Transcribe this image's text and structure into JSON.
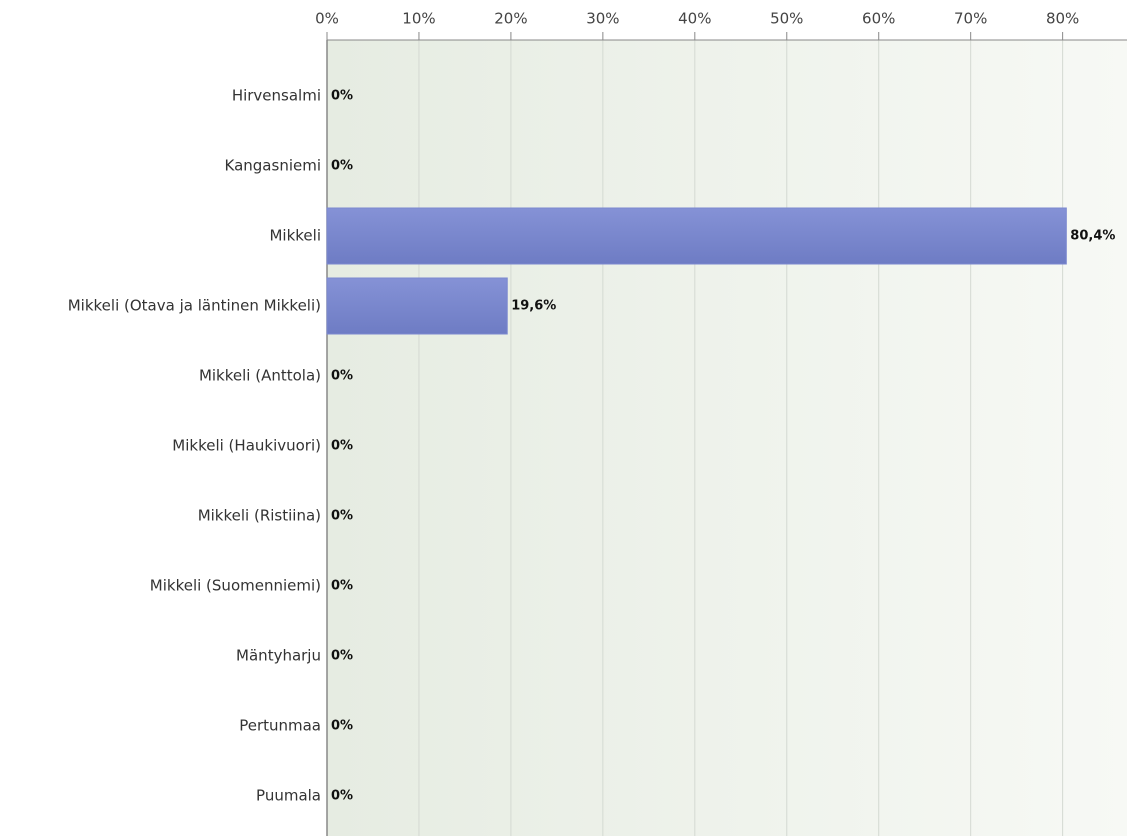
{
  "chart_data": {
    "type": "barh",
    "categories": [
      "Hirvensalmi",
      "Kangasniemi",
      "Mikkeli",
      "Mikkeli (Otava ja läntinen Mikkeli)",
      "Mikkeli (Anttola)",
      "Mikkeli (Haukivuori)",
      "Mikkeli (Ristiina)",
      "Mikkeli (Suomenniemi)",
      "Mäntyharju",
      "Pertunmaa",
      "Puumala"
    ],
    "values": [
      0,
      0,
      80.4,
      19.6,
      0,
      0,
      0,
      0,
      0,
      0,
      0
    ],
    "value_labels": [
      "0%",
      "0%",
      "80,4%",
      "19,6%",
      "0%",
      "0%",
      "0%",
      "0%",
      "0%",
      "0%",
      "0%"
    ],
    "color": "#7b88cf",
    "xlim": [
      0,
      87
    ],
    "xticks": [
      {
        "value": 0,
        "label": "0%"
      },
      {
        "value": 10,
        "label": "10%"
      },
      {
        "value": 20,
        "label": "20%"
      },
      {
        "value": 30,
        "label": "30%"
      },
      {
        "value": 40,
        "label": "40%"
      },
      {
        "value": 50,
        "label": "50%"
      },
      {
        "value": 60,
        "label": "60%"
      },
      {
        "value": 70,
        "label": "70%"
      },
      {
        "value": 80,
        "label": "80%"
      }
    ],
    "grid": true
  }
}
